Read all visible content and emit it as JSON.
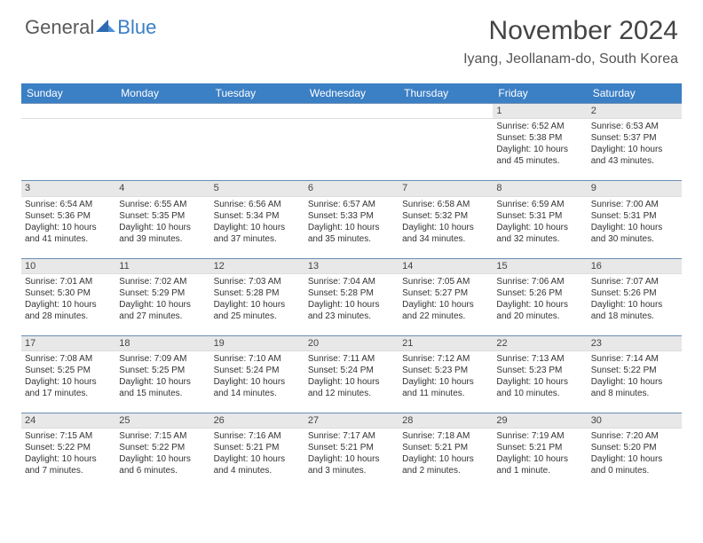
{
  "logo": {
    "general": "General",
    "blue": "Blue"
  },
  "title": "November 2024",
  "location": "Iyang, Jeollanam-do, South Korea",
  "colors": {
    "header_bg": "#3b7fc4",
    "header_text": "#ffffff",
    "daynum_bg": "#e8e8e8",
    "border": "#6a8db5",
    "text": "#333333"
  },
  "weekdays": [
    "Sunday",
    "Monday",
    "Tuesday",
    "Wednesday",
    "Thursday",
    "Friday",
    "Saturday"
  ],
  "weeks": [
    [
      null,
      null,
      null,
      null,
      null,
      {
        "n": "1",
        "sr": "Sunrise: 6:52 AM",
        "ss": "Sunset: 5:38 PM",
        "dl1": "Daylight: 10 hours",
        "dl2": "and 45 minutes."
      },
      {
        "n": "2",
        "sr": "Sunrise: 6:53 AM",
        "ss": "Sunset: 5:37 PM",
        "dl1": "Daylight: 10 hours",
        "dl2": "and 43 minutes."
      }
    ],
    [
      {
        "n": "3",
        "sr": "Sunrise: 6:54 AM",
        "ss": "Sunset: 5:36 PM",
        "dl1": "Daylight: 10 hours",
        "dl2": "and 41 minutes."
      },
      {
        "n": "4",
        "sr": "Sunrise: 6:55 AM",
        "ss": "Sunset: 5:35 PM",
        "dl1": "Daylight: 10 hours",
        "dl2": "and 39 minutes."
      },
      {
        "n": "5",
        "sr": "Sunrise: 6:56 AM",
        "ss": "Sunset: 5:34 PM",
        "dl1": "Daylight: 10 hours",
        "dl2": "and 37 minutes."
      },
      {
        "n": "6",
        "sr": "Sunrise: 6:57 AM",
        "ss": "Sunset: 5:33 PM",
        "dl1": "Daylight: 10 hours",
        "dl2": "and 35 minutes."
      },
      {
        "n": "7",
        "sr": "Sunrise: 6:58 AM",
        "ss": "Sunset: 5:32 PM",
        "dl1": "Daylight: 10 hours",
        "dl2": "and 34 minutes."
      },
      {
        "n": "8",
        "sr": "Sunrise: 6:59 AM",
        "ss": "Sunset: 5:31 PM",
        "dl1": "Daylight: 10 hours",
        "dl2": "and 32 minutes."
      },
      {
        "n": "9",
        "sr": "Sunrise: 7:00 AM",
        "ss": "Sunset: 5:31 PM",
        "dl1": "Daylight: 10 hours",
        "dl2": "and 30 minutes."
      }
    ],
    [
      {
        "n": "10",
        "sr": "Sunrise: 7:01 AM",
        "ss": "Sunset: 5:30 PM",
        "dl1": "Daylight: 10 hours",
        "dl2": "and 28 minutes."
      },
      {
        "n": "11",
        "sr": "Sunrise: 7:02 AM",
        "ss": "Sunset: 5:29 PM",
        "dl1": "Daylight: 10 hours",
        "dl2": "and 27 minutes."
      },
      {
        "n": "12",
        "sr": "Sunrise: 7:03 AM",
        "ss": "Sunset: 5:28 PM",
        "dl1": "Daylight: 10 hours",
        "dl2": "and 25 minutes."
      },
      {
        "n": "13",
        "sr": "Sunrise: 7:04 AM",
        "ss": "Sunset: 5:28 PM",
        "dl1": "Daylight: 10 hours",
        "dl2": "and 23 minutes."
      },
      {
        "n": "14",
        "sr": "Sunrise: 7:05 AM",
        "ss": "Sunset: 5:27 PM",
        "dl1": "Daylight: 10 hours",
        "dl2": "and 22 minutes."
      },
      {
        "n": "15",
        "sr": "Sunrise: 7:06 AM",
        "ss": "Sunset: 5:26 PM",
        "dl1": "Daylight: 10 hours",
        "dl2": "and 20 minutes."
      },
      {
        "n": "16",
        "sr": "Sunrise: 7:07 AM",
        "ss": "Sunset: 5:26 PM",
        "dl1": "Daylight: 10 hours",
        "dl2": "and 18 minutes."
      }
    ],
    [
      {
        "n": "17",
        "sr": "Sunrise: 7:08 AM",
        "ss": "Sunset: 5:25 PM",
        "dl1": "Daylight: 10 hours",
        "dl2": "and 17 minutes."
      },
      {
        "n": "18",
        "sr": "Sunrise: 7:09 AM",
        "ss": "Sunset: 5:25 PM",
        "dl1": "Daylight: 10 hours",
        "dl2": "and 15 minutes."
      },
      {
        "n": "19",
        "sr": "Sunrise: 7:10 AM",
        "ss": "Sunset: 5:24 PM",
        "dl1": "Daylight: 10 hours",
        "dl2": "and 14 minutes."
      },
      {
        "n": "20",
        "sr": "Sunrise: 7:11 AM",
        "ss": "Sunset: 5:24 PM",
        "dl1": "Daylight: 10 hours",
        "dl2": "and 12 minutes."
      },
      {
        "n": "21",
        "sr": "Sunrise: 7:12 AM",
        "ss": "Sunset: 5:23 PM",
        "dl1": "Daylight: 10 hours",
        "dl2": "and 11 minutes."
      },
      {
        "n": "22",
        "sr": "Sunrise: 7:13 AM",
        "ss": "Sunset: 5:23 PM",
        "dl1": "Daylight: 10 hours",
        "dl2": "and 10 minutes."
      },
      {
        "n": "23",
        "sr": "Sunrise: 7:14 AM",
        "ss": "Sunset: 5:22 PM",
        "dl1": "Daylight: 10 hours",
        "dl2": "and 8 minutes."
      }
    ],
    [
      {
        "n": "24",
        "sr": "Sunrise: 7:15 AM",
        "ss": "Sunset: 5:22 PM",
        "dl1": "Daylight: 10 hours",
        "dl2": "and 7 minutes."
      },
      {
        "n": "25",
        "sr": "Sunrise: 7:15 AM",
        "ss": "Sunset: 5:22 PM",
        "dl1": "Daylight: 10 hours",
        "dl2": "and 6 minutes."
      },
      {
        "n": "26",
        "sr": "Sunrise: 7:16 AM",
        "ss": "Sunset: 5:21 PM",
        "dl1": "Daylight: 10 hours",
        "dl2": "and 4 minutes."
      },
      {
        "n": "27",
        "sr": "Sunrise: 7:17 AM",
        "ss": "Sunset: 5:21 PM",
        "dl1": "Daylight: 10 hours",
        "dl2": "and 3 minutes."
      },
      {
        "n": "28",
        "sr": "Sunrise: 7:18 AM",
        "ss": "Sunset: 5:21 PM",
        "dl1": "Daylight: 10 hours",
        "dl2": "and 2 minutes."
      },
      {
        "n": "29",
        "sr": "Sunrise: 7:19 AM",
        "ss": "Sunset: 5:21 PM",
        "dl1": "Daylight: 10 hours",
        "dl2": "and 1 minute."
      },
      {
        "n": "30",
        "sr": "Sunrise: 7:20 AM",
        "ss": "Sunset: 5:20 PM",
        "dl1": "Daylight: 10 hours",
        "dl2": "and 0 minutes."
      }
    ]
  ]
}
